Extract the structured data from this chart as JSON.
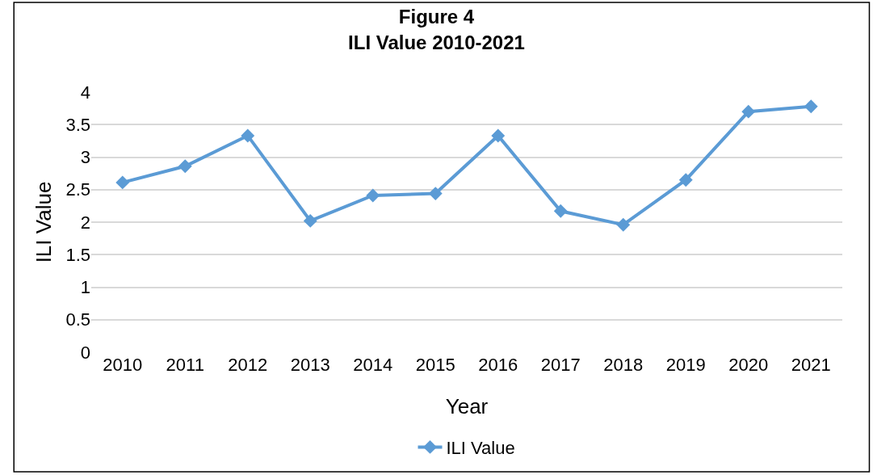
{
  "chart_data": {
    "type": "line",
    "title": "Figure 4\nILI Value 2010-2021",
    "xlabel": "Year",
    "ylabel": "ILI Value",
    "categories": [
      "2010",
      "2011",
      "2012",
      "2013",
      "2014",
      "2015",
      "2016",
      "2017",
      "2018",
      "2019",
      "2020",
      "2021"
    ],
    "series": [
      {
        "name": "ILI Value",
        "color": "#5b9bd5",
        "values": [
          2.61,
          2.86,
          3.33,
          2.02,
          2.41,
          2.44,
          3.33,
          2.17,
          1.96,
          2.65,
          3.7,
          3.78
        ]
      }
    ],
    "ylim": [
      0,
      4
    ],
    "yticks": [
      0,
      0.5,
      1,
      1.5,
      2,
      2.5,
      3,
      3.5,
      4
    ],
    "grid": "y",
    "legend": "bottom",
    "marker": "diamond",
    "line_style": "solid"
  }
}
